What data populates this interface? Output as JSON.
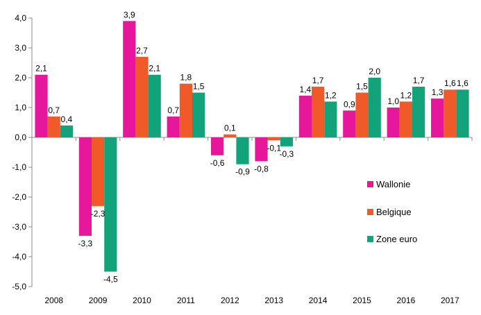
{
  "chart_data": {
    "type": "bar",
    "categories": [
      "2008",
      "2009",
      "2010",
      "2011",
      "2012",
      "2013",
      "2014",
      "2015",
      "2016",
      "2017"
    ],
    "series": [
      {
        "name": "Wallonie",
        "color": "#e6179b",
        "values": [
          2.1,
          -3.3,
          3.9,
          0.7,
          -0.6,
          -0.8,
          1.4,
          0.9,
          1.0,
          1.3
        ],
        "labels": [
          "2,1",
          "-3,3",
          "3,9",
          "0,7",
          "-0,6",
          "-0,8",
          "1,4",
          "0,9",
          "1,0",
          "1,3"
        ]
      },
      {
        "name": "Belgique",
        "color": "#f05a28",
        "values": [
          0.7,
          -2.3,
          2.7,
          1.8,
          0.1,
          -0.1,
          1.7,
          1.5,
          1.2,
          1.6
        ],
        "labels": [
          "0,7",
          "-2,3",
          "2,7",
          "1,8",
          "0,1",
          "-0,1",
          "1,7",
          "1,5",
          "1,2",
          "1,6"
        ]
      },
      {
        "name": "Zone euro",
        "color": "#13a37a",
        "values": [
          0.4,
          -4.5,
          2.1,
          1.5,
          -0.9,
          -0.3,
          1.2,
          2.0,
          1.7,
          1.6
        ],
        "labels": [
          "0,4",
          "-4,5",
          "2,1",
          "1,5",
          "-0,9",
          "-0,3",
          "1,2",
          "2,0",
          "1,7",
          "1,6"
        ]
      }
    ],
    "ylim": [
      -5.0,
      4.0
    ],
    "yticks": [
      4.0,
      3.0,
      2.0,
      1.0,
      0.0,
      -1.0,
      -2.0,
      -3.0,
      -4.0,
      -5.0
    ],
    "ytick_labels": [
      "4,0",
      "3,0",
      "2,0",
      "1,0",
      "0,0",
      "-1,0",
      "-2,0",
      "-3,0",
      "-4,0",
      "-5,0"
    ],
    "grid": false,
    "legend_position": "right"
  }
}
